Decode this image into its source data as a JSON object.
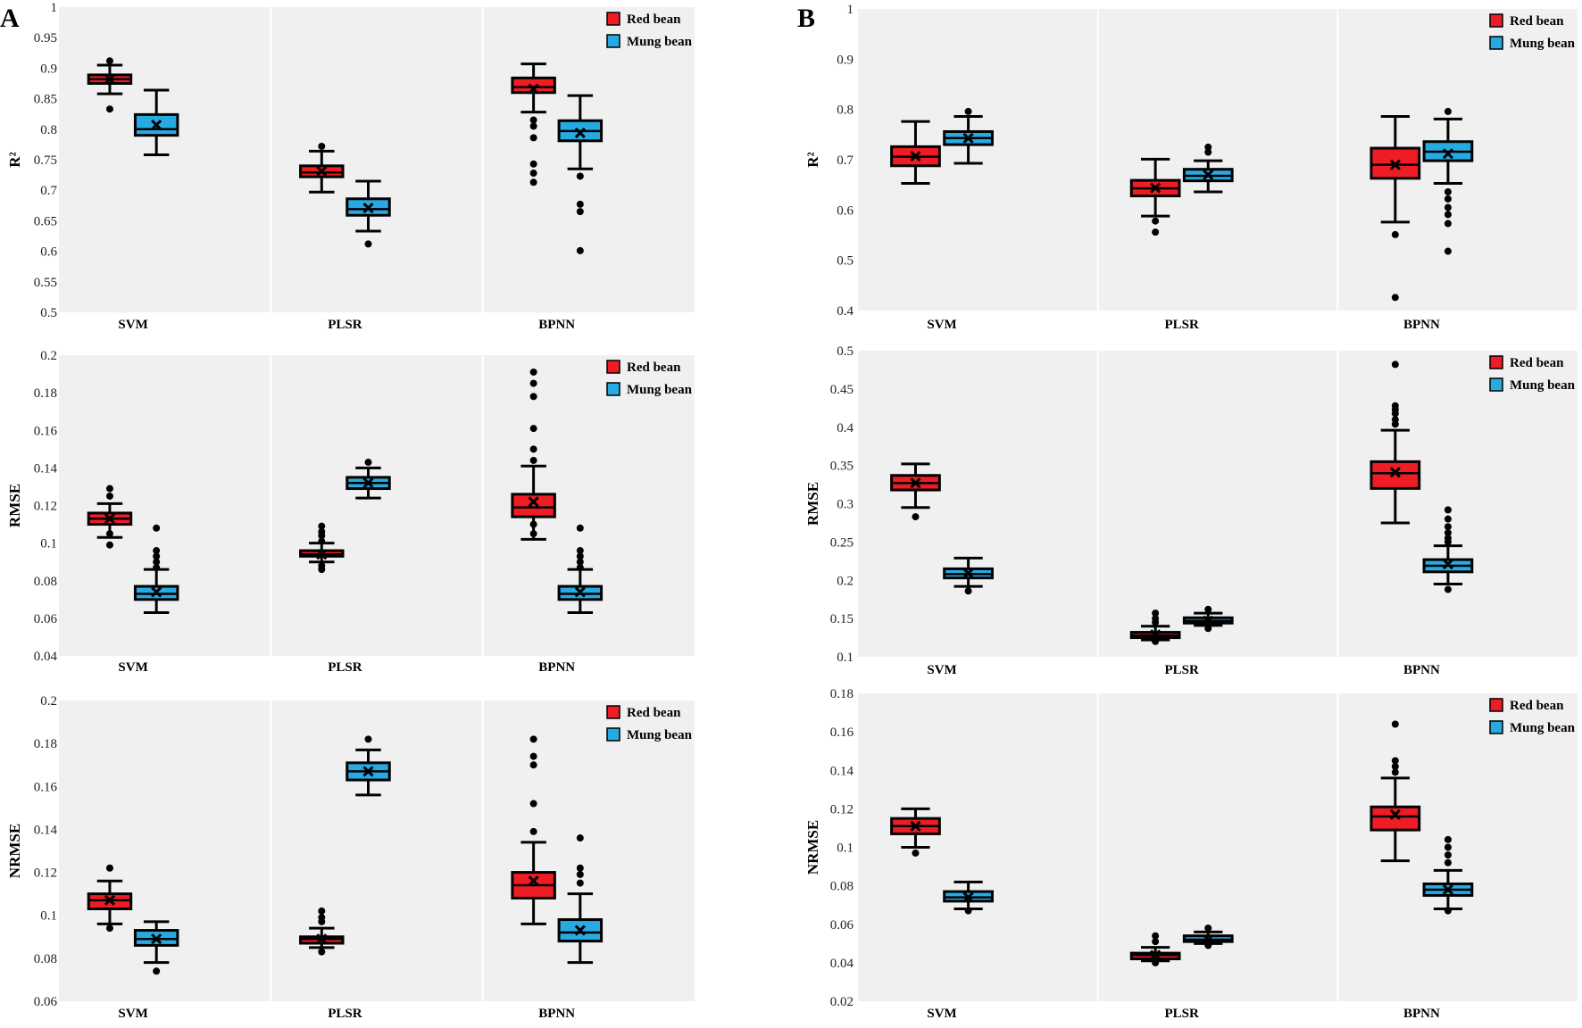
{
  "figure": {
    "panel_labels": [
      "A",
      "B"
    ],
    "legend": [
      {
        "label": "Red bean",
        "color": "#ee1c25"
      },
      {
        "label": "Mung bean",
        "color": "#27a9e1"
      }
    ]
  },
  "colors": {
    "red": "#ee1c25",
    "blue": "#27a9e1",
    "panel_bg": "#f0f0f0",
    "divider": "#ffffff"
  },
  "chart_data": [
    {
      "id": "A-R2",
      "panel": "A",
      "type": "box",
      "ylabel": "R²",
      "ylim": [
        0.5,
        1
      ],
      "yticks": [
        0.5,
        0.55,
        0.6,
        0.65,
        0.7,
        0.75,
        0.8,
        0.85,
        0.9,
        0.95,
        1
      ],
      "categories": [
        "SVM",
        "PLSR",
        "BPNN"
      ],
      "series": [
        {
          "name": "Red bean",
          "boxes": [
            {
              "min": 0.858,
              "q1": 0.875,
              "median": 0.882,
              "q3": 0.889,
              "max": 0.905,
              "mean": 0.882,
              "outliers": [
                0.912,
                0.833
              ]
            },
            {
              "min": 0.697,
              "q1": 0.722,
              "median": 0.729,
              "q3": 0.74,
              "max": 0.764,
              "mean": 0.731,
              "outliers": [
                0.772
              ]
            },
            {
              "min": 0.828,
              "q1": 0.86,
              "median": 0.869,
              "q3": 0.884,
              "max": 0.907,
              "mean": 0.866,
              "outliers": [
                0.815,
                0.805,
                0.786,
                0.743,
                0.728,
                0.713
              ]
            }
          ]
        },
        {
          "name": "Mung bean",
          "boxes": [
            {
              "min": 0.758,
              "q1": 0.79,
              "median": 0.8,
              "q3": 0.824,
              "max": 0.864,
              "mean": 0.807,
              "outliers": []
            },
            {
              "min": 0.633,
              "q1": 0.659,
              "median": 0.669,
              "q3": 0.686,
              "max": 0.715,
              "mean": 0.671,
              "outliers": [
                0.612
              ]
            },
            {
              "min": 0.735,
              "q1": 0.781,
              "median": 0.797,
              "q3": 0.814,
              "max": 0.855,
              "mean": 0.794,
              "outliers": [
                0.723,
                0.677,
                0.665,
                0.601
              ]
            }
          ]
        }
      ]
    },
    {
      "id": "A-RMSE",
      "panel": "A",
      "type": "box",
      "ylabel": "RMSE",
      "ylim": [
        0.04,
        0.2
      ],
      "yticks": [
        0.04,
        0.06,
        0.08,
        0.1,
        0.12,
        0.14,
        0.16,
        0.18,
        0.2
      ],
      "categories": [
        "SVM",
        "PLSR",
        "BPNN"
      ],
      "series": [
        {
          "name": "Red bean",
          "boxes": [
            {
              "min": 0.103,
              "q1": 0.11,
              "median": 0.113,
              "q3": 0.116,
              "max": 0.121,
              "mean": 0.113,
              "outliers": [
                0.129,
                0.125,
                0.105,
                0.099
              ]
            },
            {
              "min": 0.09,
              "q1": 0.093,
              "median": 0.094,
              "q3": 0.096,
              "max": 0.1,
              "mean": 0.094,
              "outliers": [
                0.109,
                0.106,
                0.104,
                0.101,
                0.088,
                0.086
              ]
            },
            {
              "min": 0.102,
              "q1": 0.114,
              "median": 0.119,
              "q3": 0.126,
              "max": 0.141,
              "mean": 0.122,
              "outliers": [
                0.191,
                0.185,
                0.178,
                0.161,
                0.15,
                0.144,
                0.11,
                0.105
              ]
            }
          ]
        },
        {
          "name": "Mung bean",
          "boxes": [
            {
              "min": 0.063,
              "q1": 0.07,
              "median": 0.073,
              "q3": 0.077,
              "max": 0.086,
              "mean": 0.074,
              "outliers": [
                0.108,
                0.096,
                0.093,
                0.09,
                0.087
              ]
            },
            {
              "min": 0.124,
              "q1": 0.129,
              "median": 0.132,
              "q3": 0.135,
              "max": 0.14,
              "mean": 0.132,
              "outliers": [
                0.143
              ]
            },
            {
              "min": 0.063,
              "q1": 0.07,
              "median": 0.073,
              "q3": 0.077,
              "max": 0.086,
              "mean": 0.074,
              "outliers": [
                0.108,
                0.096,
                0.093,
                0.09,
                0.087
              ]
            }
          ]
        }
      ]
    },
    {
      "id": "A-NRMSE",
      "panel": "A",
      "type": "box",
      "ylabel": "NRMSE",
      "ylim": [
        0.06,
        0.2
      ],
      "yticks": [
        0.06,
        0.08,
        0.1,
        0.12,
        0.14,
        0.16,
        0.18,
        0.2
      ],
      "categories": [
        "SVM",
        "PLSR",
        "BPNN"
      ],
      "series": [
        {
          "name": "Red bean",
          "boxes": [
            {
              "min": 0.096,
              "q1": 0.103,
              "median": 0.107,
              "q3": 0.11,
              "max": 0.116,
              "mean": 0.107,
              "outliers": [
                0.122,
                0.094
              ]
            },
            {
              "min": 0.085,
              "q1": 0.087,
              "median": 0.089,
              "q3": 0.09,
              "max": 0.094,
              "mean": 0.089,
              "outliers": [
                0.102,
                0.099,
                0.097,
                0.083
              ]
            },
            {
              "min": 0.096,
              "q1": 0.108,
              "median": 0.114,
              "q3": 0.12,
              "max": 0.134,
              "mean": 0.116,
              "outliers": [
                0.182,
                0.174,
                0.17,
                0.152,
                0.139
              ]
            }
          ]
        },
        {
          "name": "Mung bean",
          "boxes": [
            {
              "min": 0.078,
              "q1": 0.086,
              "median": 0.089,
              "q3": 0.093,
              "max": 0.097,
              "mean": 0.089,
              "outliers": [
                0.074
              ]
            },
            {
              "min": 0.156,
              "q1": 0.163,
              "median": 0.167,
              "q3": 0.171,
              "max": 0.177,
              "mean": 0.167,
              "outliers": [
                0.182
              ]
            },
            {
              "min": 0.078,
              "q1": 0.088,
              "median": 0.092,
              "q3": 0.098,
              "max": 0.11,
              "mean": 0.093,
              "outliers": [
                0.136,
                0.122,
                0.119,
                0.115
              ]
            }
          ]
        }
      ]
    },
    {
      "id": "B-R2",
      "panel": "B",
      "type": "box",
      "ylabel": "R²",
      "ylim": [
        0.4,
        1
      ],
      "yticks": [
        0.4,
        0.5,
        0.6,
        0.7,
        0.8,
        0.9,
        1
      ],
      "categories": [
        "SVM",
        "PLSR",
        "BPNN"
      ],
      "series": [
        {
          "name": "Red bean",
          "boxes": [
            {
              "min": 0.653,
              "q1": 0.688,
              "median": 0.706,
              "q3": 0.726,
              "max": 0.776,
              "mean": 0.707,
              "outliers": []
            },
            {
              "min": 0.588,
              "q1": 0.628,
              "median": 0.643,
              "q3": 0.659,
              "max": 0.701,
              "mean": 0.644,
              "outliers": [
                0.578,
                0.556
              ]
            },
            {
              "min": 0.576,
              "q1": 0.663,
              "median": 0.69,
              "q3": 0.723,
              "max": 0.786,
              "mean": 0.69,
              "outliers": [
                0.551,
                0.426
              ]
            }
          ]
        },
        {
          "name": "Mung bean",
          "boxes": [
            {
              "min": 0.693,
              "q1": 0.73,
              "median": 0.743,
              "q3": 0.756,
              "max": 0.786,
              "mean": 0.743,
              "outliers": [
                0.796
              ]
            },
            {
              "min": 0.636,
              "q1": 0.658,
              "median": 0.668,
              "q3": 0.681,
              "max": 0.698,
              "mean": 0.67,
              "outliers": [
                0.725,
                0.715
              ]
            },
            {
              "min": 0.653,
              "q1": 0.698,
              "median": 0.716,
              "q3": 0.736,
              "max": 0.781,
              "mean": 0.712,
              "outliers": [
                0.796,
                0.636,
                0.622,
                0.605,
                0.591,
                0.573,
                0.518
              ]
            }
          ]
        }
      ]
    },
    {
      "id": "B-RMSE",
      "panel": "B",
      "type": "box",
      "ylabel": "RMSE",
      "ylim": [
        0.1,
        0.5
      ],
      "yticks": [
        0.1,
        0.15,
        0.2,
        0.25,
        0.3,
        0.35,
        0.4,
        0.45,
        0.5
      ],
      "categories": [
        "SVM",
        "PLSR",
        "BPNN"
      ],
      "series": [
        {
          "name": "Red bean",
          "boxes": [
            {
              "min": 0.295,
              "q1": 0.318,
              "median": 0.327,
              "q3": 0.337,
              "max": 0.352,
              "mean": 0.327,
              "outliers": [
                0.283
              ]
            },
            {
              "min": 0.122,
              "q1": 0.125,
              "median": 0.128,
              "q3": 0.132,
              "max": 0.14,
              "mean": 0.129,
              "outliers": [
                0.157,
                0.15,
                0.145,
                0.12
              ]
            },
            {
              "min": 0.275,
              "q1": 0.32,
              "median": 0.34,
              "q3": 0.355,
              "max": 0.396,
              "mean": 0.341,
              "outliers": [
                0.482,
                0.428,
                0.423,
                0.418,
                0.41,
                0.404
              ]
            }
          ]
        },
        {
          "name": "Mung bean",
          "boxes": [
            {
              "min": 0.192,
              "q1": 0.203,
              "median": 0.208,
              "q3": 0.215,
              "max": 0.229,
              "mean": 0.209,
              "outliers": [
                0.186
              ]
            },
            {
              "min": 0.141,
              "q1": 0.144,
              "median": 0.147,
              "q3": 0.151,
              "max": 0.157,
              "mean": 0.147,
              "outliers": [
                0.162,
                0.137
              ]
            },
            {
              "min": 0.195,
              "q1": 0.211,
              "median": 0.219,
              "q3": 0.227,
              "max": 0.245,
              "mean": 0.221,
              "outliers": [
                0.292,
                0.28,
                0.27,
                0.262,
                0.255,
                0.25,
                0.188
              ]
            }
          ]
        }
      ]
    },
    {
      "id": "B-NRMSE",
      "panel": "B",
      "type": "box",
      "ylabel": "NRMSE",
      "ylim": [
        0.02,
        0.18
      ],
      "yticks": [
        0.02,
        0.04,
        0.06,
        0.08,
        0.1,
        0.12,
        0.14,
        0.16,
        0.18
      ],
      "categories": [
        "SVM",
        "PLSR",
        "BPNN"
      ],
      "series": [
        {
          "name": "Red bean",
          "boxes": [
            {
              "min": 0.1,
              "q1": 0.107,
              "median": 0.111,
              "q3": 0.115,
              "max": 0.12,
              "mean": 0.111,
              "outliers": [
                0.097
              ]
            },
            {
              "min": 0.041,
              "q1": 0.042,
              "median": 0.044,
              "q3": 0.045,
              "max": 0.048,
              "mean": 0.044,
              "outliers": [
                0.054,
                0.051,
                0.04
              ]
            },
            {
              "min": 0.093,
              "q1": 0.109,
              "median": 0.116,
              "q3": 0.121,
              "max": 0.136,
              "mean": 0.117,
              "outliers": [
                0.164,
                0.145,
                0.142,
                0.139
              ]
            }
          ]
        },
        {
          "name": "Mung bean",
          "boxes": [
            {
              "min": 0.068,
              "q1": 0.072,
              "median": 0.074,
              "q3": 0.077,
              "max": 0.082,
              "mean": 0.074,
              "outliers": [
                0.067
              ]
            },
            {
              "min": 0.05,
              "q1": 0.051,
              "median": 0.052,
              "q3": 0.054,
              "max": 0.056,
              "mean": 0.052,
              "outliers": [
                0.058,
                0.049
              ]
            },
            {
              "min": 0.068,
              "q1": 0.075,
              "median": 0.078,
              "q3": 0.081,
              "max": 0.088,
              "mean": 0.078,
              "outliers": [
                0.104,
                0.1,
                0.096,
                0.092,
                0.067
              ]
            }
          ]
        }
      ]
    }
  ]
}
